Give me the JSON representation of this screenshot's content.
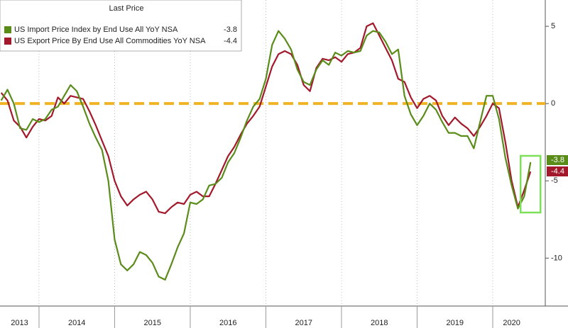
{
  "chart_data": {
    "type": "line",
    "legend_title": "Last Price",
    "x": [
      2013.5,
      2013.583,
      2013.667,
      2013.75,
      2013.833,
      2013.917,
      2014,
      2014.083,
      2014.167,
      2014.25,
      2014.333,
      2014.417,
      2014.5,
      2014.583,
      2014.667,
      2014.75,
      2014.833,
      2014.917,
      2015,
      2015.083,
      2015.167,
      2015.25,
      2015.333,
      2015.417,
      2015.5,
      2015.583,
      2015.667,
      2015.75,
      2015.833,
      2015.917,
      2016,
      2016.083,
      2016.167,
      2016.25,
      2016.333,
      2016.417,
      2016.5,
      2016.583,
      2016.667,
      2016.75,
      2016.833,
      2016.917,
      2017,
      2017.083,
      2017.167,
      2017.25,
      2017.333,
      2017.417,
      2017.5,
      2017.583,
      2017.667,
      2017.75,
      2017.833,
      2017.917,
      2018,
      2018.083,
      2018.167,
      2018.25,
      2018.333,
      2018.417,
      2018.5,
      2018.583,
      2018.667,
      2018.75,
      2018.833,
      2018.917,
      2019,
      2019.083,
      2019.167,
      2019.25,
      2019.333,
      2019.417,
      2019.5,
      2019.583,
      2019.667,
      2019.75,
      2019.833,
      2019.917,
      2020,
      2020.083,
      2020.167,
      2020.25,
      2020.333,
      2020.417,
      2020.5
    ],
    "series": [
      {
        "name": "US Import Price Index by End Use All YoY NSA",
        "color": "#5a8c1a",
        "values": [
          0.2,
          0.9,
          0.0,
          -1.6,
          -1.7,
          -1.0,
          -1.2,
          -1.0,
          -0.4,
          -0.2,
          0.5,
          1.2,
          0.8,
          -0.2,
          -1.3,
          -2.2,
          -3.0,
          -5.0,
          -8.8,
          -10.4,
          -10.8,
          -10.4,
          -9.6,
          -9.8,
          -10.3,
          -11.2,
          -11.4,
          -10.4,
          -9.3,
          -8.4,
          -6.4,
          -6.5,
          -6.2,
          -5.3,
          -5.2,
          -4.8,
          -3.8,
          -3.2,
          -2.2,
          -1.1,
          -0.2,
          0.3,
          1.6,
          3.8,
          4.7,
          4.2,
          3.5,
          2.2,
          1.4,
          1.2,
          2.2,
          2.8,
          2.5,
          3.3,
          3.1,
          3.4,
          3.3,
          3.4,
          4.4,
          4.7,
          4.6,
          4.0,
          3.2,
          3.5,
          0.5,
          -0.7,
          -1.4,
          -0.8,
          0.0,
          -0.4,
          -1.2,
          -1.9,
          -1.9,
          -2.1,
          -2.1,
          -2.9,
          -1.2,
          0.5,
          0.5,
          -1.0,
          -3.5,
          -5.3,
          -6.8,
          -6.0,
          -3.8
        ]
      },
      {
        "name": "US Export Price By End Use All Commodities YoY NSA",
        "color": "#a3192c",
        "values": [
          0.7,
          0.2,
          -1.1,
          -1.5,
          -2.2,
          -1.5,
          -1.0,
          -1.1,
          -0.8,
          0.4,
          0.0,
          0.5,
          0.4,
          0.3,
          -0.5,
          -1.4,
          -2.4,
          -3.4,
          -5.0,
          -6.0,
          -6.6,
          -6.2,
          -5.9,
          -5.7,
          -6.2,
          -7.0,
          -7.1,
          -6.7,
          -6.4,
          -6.5,
          -5.9,
          -5.7,
          -6.0,
          -6.0,
          -5.2,
          -4.3,
          -3.4,
          -2.8,
          -2.0,
          -1.3,
          -0.8,
          -0.2,
          1.1,
          2.4,
          3.2,
          3.4,
          3.2,
          2.5,
          1.2,
          0.8,
          2.3,
          2.9,
          2.8,
          3.0,
          2.7,
          3.2,
          3.3,
          3.6,
          5.0,
          5.2,
          4.4,
          3.6,
          2.8,
          1.6,
          1.4,
          0.4,
          -0.3,
          0.3,
          0.5,
          0.2,
          -0.8,
          -1.4,
          -0.9,
          -1.3,
          -1.6,
          -2.1,
          -1.5,
          -0.8,
          0.0,
          -0.3,
          -2.5,
          -5.0,
          -6.7,
          -5.6,
          -4.4
        ]
      }
    ],
    "hline": 0,
    "xlim": [
      2013.484,
      2020.695
    ],
    "xticks": [
      {
        "value": 2013,
        "label": "2013"
      },
      {
        "value": 2014,
        "label": "2014"
      },
      {
        "value": 2015,
        "label": "2015"
      },
      {
        "value": 2016,
        "label": "2016"
      },
      {
        "value": 2017,
        "label": "2017"
      },
      {
        "value": 2018,
        "label": "2018"
      },
      {
        "value": 2019,
        "label": "2019"
      },
      {
        "value": 2020,
        "label": "2020"
      }
    ],
    "ylim": [
      -13.1,
      6.7
    ],
    "yticks": [
      5,
      0,
      -5,
      -10
    ]
  }
}
